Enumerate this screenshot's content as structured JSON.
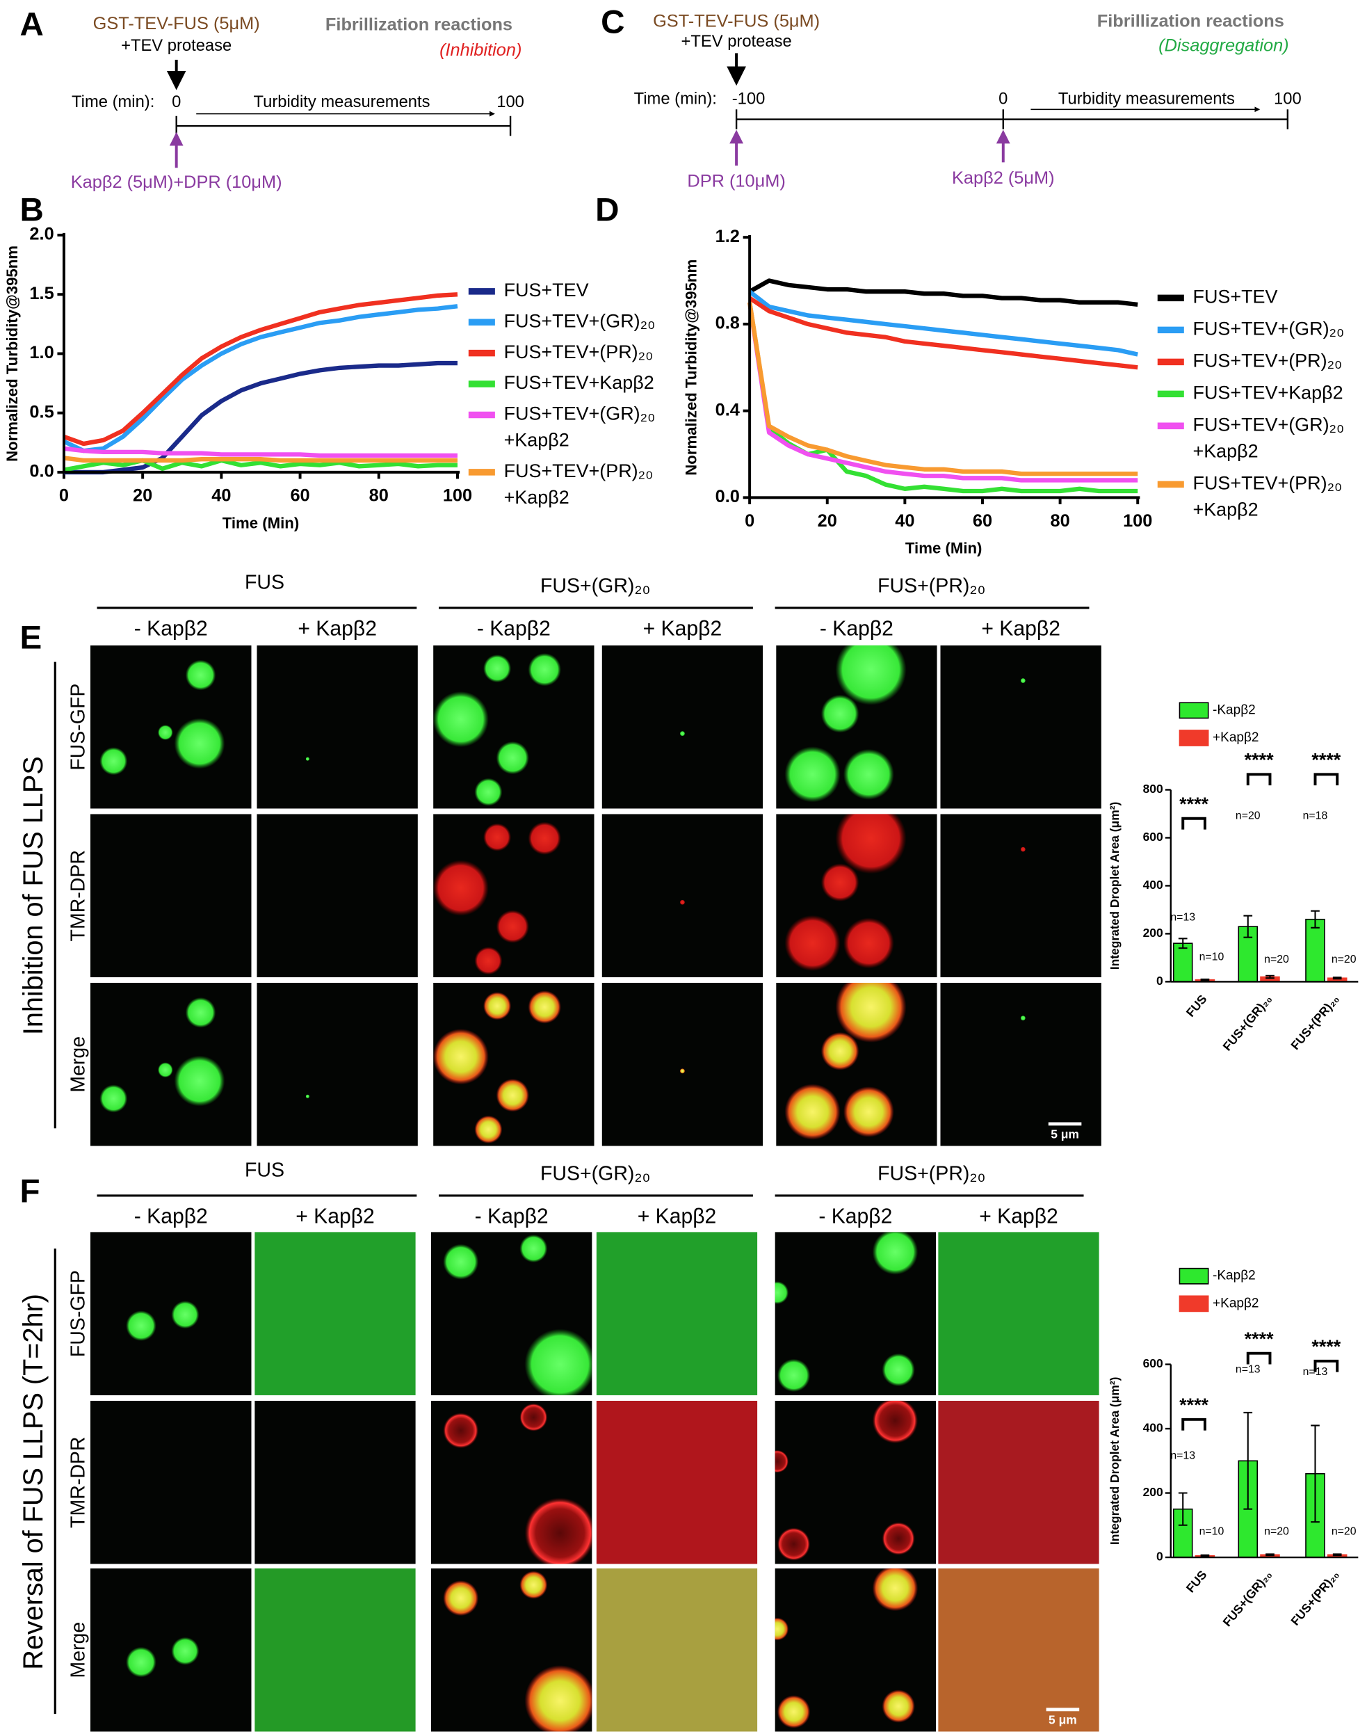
{
  "schematic_a": {
    "letter": "A",
    "protein": "GST-TEV-FUS (5μM)",
    "protease": "+TEV protease",
    "title": "Fibrillization reactions",
    "subtitle": "(Inhibition)",
    "time_label": "Time (min):",
    "start": "0",
    "measurement": "Turbidity measurements",
    "end": "100",
    "addition": "Kapβ2 (5μM)+DPR (10μM)"
  },
  "schematic_c": {
    "letter": "C",
    "protein": "GST-TEV-FUS (5μM)",
    "protease": "+TEV protease",
    "title": "Fibrillization reactions",
    "subtitle": "(Disaggregation)",
    "time_label": "Time (min):",
    "start": "-100",
    "mid": "0",
    "measurement": "Turbidity measurements",
    "end": "100",
    "addition_1": "DPR (10μM)",
    "addition_2": "Kapβ2 (5μM)"
  },
  "chart_data": [
    {
      "type": "line",
      "panel": "B",
      "x_label": "Time (Min)",
      "y_label": "Normalized Turbidity@395nm",
      "x": [
        0,
        5,
        10,
        15,
        20,
        25,
        30,
        35,
        40,
        45,
        50,
        55,
        60,
        65,
        70,
        75,
        80,
        85,
        90,
        95,
        100
      ],
      "xlim": [
        0,
        100
      ],
      "xticks": [
        0,
        20,
        40,
        60,
        80,
        100
      ],
      "ylim": [
        0,
        2
      ],
      "yticks": [
        {
          "value": 0,
          "label": "0.0"
        },
        0.5,
        {
          "value": 1,
          "label": "1.0"
        },
        1.5,
        {
          "value": 2,
          "label": "2.0"
        }
      ],
      "series": [
        {
          "name": "FUS+TEV",
          "color": "#1a2a8a",
          "values": [
            0,
            0,
            0,
            0.02,
            0.04,
            0.12,
            0.3,
            0.48,
            0.6,
            0.69,
            0.75,
            0.79,
            0.83,
            0.86,
            0.88,
            0.89,
            0.9,
            0.9,
            0.91,
            0.92,
            0.92
          ]
        },
        {
          "name": "FUS+TEV+(GR)₂₀",
          "color": "#2a9df4",
          "values": [
            0.26,
            0.18,
            0.2,
            0.3,
            0.45,
            0.62,
            0.78,
            0.9,
            1.0,
            1.08,
            1.14,
            1.18,
            1.22,
            1.26,
            1.28,
            1.31,
            1.33,
            1.35,
            1.37,
            1.38,
            1.4
          ]
        },
        {
          "name": "FUS+TEV+(PR)₂₀",
          "color": "#f03020",
          "values": [
            0.3,
            0.24,
            0.27,
            0.35,
            0.5,
            0.66,
            0.82,
            0.96,
            1.06,
            1.14,
            1.2,
            1.25,
            1.3,
            1.35,
            1.38,
            1.41,
            1.43,
            1.45,
            1.47,
            1.49,
            1.5
          ]
        },
        {
          "name": "FUS+TEV+Kapβ2",
          "color": "#33e033",
          "values": [
            0.02,
            0.05,
            0.08,
            0.06,
            0.1,
            0.03,
            0.08,
            0.05,
            0.1,
            0.06,
            0.08,
            0.05,
            0.07,
            0.06,
            0.08,
            0.05,
            0.06,
            0.07,
            0.05,
            0.06,
            0.06
          ]
        },
        {
          "name": "FUS+TEV+(GR)₂₀\n+Kapβ2",
          "color": "#f050f0",
          "values": [
            0.2,
            0.18,
            0.17,
            0.17,
            0.17,
            0.16,
            0.16,
            0.16,
            0.15,
            0.15,
            0.15,
            0.15,
            0.15,
            0.14,
            0.14,
            0.14,
            0.14,
            0.14,
            0.14,
            0.14,
            0.14
          ]
        },
        {
          "name": "FUS+TEV+(PR)₂₀\n+Kapβ2",
          "color": "#f89a30",
          "values": [
            0.12,
            0.1,
            0.1,
            0.1,
            0.1,
            0.1,
            0.1,
            0.11,
            0.11,
            0.11,
            0.11,
            0.1,
            0.1,
            0.1,
            0.1,
            0.1,
            0.1,
            0.1,
            0.1,
            0.1,
            0.1
          ]
        }
      ]
    },
    {
      "type": "line",
      "panel": "D",
      "x_label": "Time (Min)",
      "y_label": "Normalized Turbidity@395nm",
      "x": [
        0,
        5,
        10,
        15,
        20,
        25,
        30,
        35,
        40,
        45,
        50,
        55,
        60,
        65,
        70,
        75,
        80,
        85,
        90,
        95,
        100
      ],
      "xlim": [
        0,
        100
      ],
      "xticks": [
        0,
        20,
        40,
        60,
        80,
        100
      ],
      "ylim": [
        0,
        1.2
      ],
      "yticks": [
        {
          "value": 0,
          "label": "0.0"
        },
        0.4,
        0.8,
        1.2
      ],
      "series": [
        {
          "name": "FUS+TEV",
          "color": "#000000",
          "values": [
            0.95,
            1.0,
            0.98,
            0.97,
            0.96,
            0.96,
            0.95,
            0.95,
            0.95,
            0.94,
            0.94,
            0.93,
            0.93,
            0.92,
            0.92,
            0.91,
            0.91,
            0.9,
            0.9,
            0.9,
            0.89
          ]
        },
        {
          "name": "FUS+TEV+(GR)₂₀",
          "color": "#2a9df4",
          "values": [
            0.95,
            0.88,
            0.86,
            0.84,
            0.83,
            0.82,
            0.81,
            0.8,
            0.79,
            0.78,
            0.77,
            0.76,
            0.75,
            0.74,
            0.73,
            0.72,
            0.71,
            0.7,
            0.69,
            0.68,
            0.66
          ]
        },
        {
          "name": "FUS+TEV+(PR)₂₀",
          "color": "#f03020",
          "values": [
            0.92,
            0.86,
            0.83,
            0.8,
            0.78,
            0.76,
            0.75,
            0.74,
            0.72,
            0.71,
            0.7,
            0.69,
            0.68,
            0.67,
            0.66,
            0.65,
            0.64,
            0.63,
            0.62,
            0.61,
            0.6
          ]
        },
        {
          "name": "FUS+TEV+Kapβ2",
          "color": "#33e033",
          "values": [
            0.9,
            0.32,
            0.25,
            0.2,
            0.22,
            0.12,
            0.1,
            0.06,
            0.04,
            0.05,
            0.04,
            0.03,
            0.03,
            0.04,
            0.03,
            0.03,
            0.03,
            0.04,
            0.03,
            0.03,
            0.03
          ]
        },
        {
          "name": "FUS+TEV+(GR)₂₀\n+Kapβ2",
          "color": "#f050f0",
          "values": [
            0.9,
            0.3,
            0.24,
            0.2,
            0.18,
            0.16,
            0.14,
            0.12,
            0.11,
            0.1,
            0.1,
            0.09,
            0.09,
            0.09,
            0.08,
            0.08,
            0.08,
            0.08,
            0.08,
            0.08,
            0.08
          ]
        },
        {
          "name": "FUS+TEV+(PR)₂₀\n+Kapβ2",
          "color": "#f89a30",
          "values": [
            0.9,
            0.33,
            0.28,
            0.24,
            0.22,
            0.19,
            0.17,
            0.15,
            0.14,
            0.13,
            0.13,
            0.12,
            0.12,
            0.12,
            0.11,
            0.11,
            0.11,
            0.11,
            0.11,
            0.11,
            0.11
          ]
        }
      ]
    },
    {
      "type": "bar",
      "y_label": "Integrated Droplet Area (μm²)",
      "categories": [
        "FUS",
        "FUS+(GR)₂₀",
        "FUS+(PR)₂₀"
      ],
      "ylim": [
        0,
        800
      ],
      "yticks": [
        0,
        200,
        400,
        600,
        800
      ],
      "series": [
        {
          "name": "-Kapβ2",
          "color": "#2ee82e",
          "values": [
            160,
            230,
            260
          ],
          "errors": [
            20,
            45,
            35
          ],
          "n_labels": [
            "n=13",
            "n=20",
            "n=18"
          ]
        },
        {
          "name": "+Kapβ2",
          "color": "#f03a2a",
          "values": [
            8,
            20,
            15
          ],
          "errors": [
            2,
            5,
            3
          ],
          "n_labels": [
            "n=10",
            "n=20",
            "n=20"
          ]
        }
      ],
      "significance": [
        "****",
        "****",
        "****"
      ]
    },
    {
      "type": "bar",
      "y_label": "Integrated Droplet Area (μm²)",
      "categories": [
        "FUS",
        "FUS+(GR)₂₀",
        "FUS+(PR)₂₀"
      ],
      "ylim": [
        0,
        600
      ],
      "yticks": [
        0,
        200,
        400,
        600
      ],
      "series": [
        {
          "name": "-Kapβ2",
          "color": "#2ee82e",
          "values": [
            150,
            300,
            260
          ],
          "errors": [
            50,
            150,
            150
          ],
          "n_labels": [
            "n=13",
            "n=13",
            "n=13"
          ]
        },
        {
          "name": "+Kapβ2",
          "color": "#f03a2a",
          "values": [
            5,
            8,
            8
          ],
          "errors": [
            2,
            2,
            2
          ],
          "n_labels": [
            "n=10",
            "n=20",
            "n=20"
          ]
        }
      ],
      "significance": [
        "****",
        "****",
        "****"
      ]
    }
  ],
  "micrographs_e": {
    "letter": "E",
    "groups": [
      "FUS",
      "FUS+(GR)₂₀",
      "FUS+(PR)₂₀"
    ],
    "conditions": [
      "- Kapβ2",
      "+ Kapβ2",
      "- Kapβ2",
      "+ Kapβ2",
      "- Kapβ2",
      "+ Kapβ2"
    ],
    "channels": [
      "FUS-GFP",
      "TMR-DPR",
      "Merge"
    ],
    "side_label": "Inhibition of FUS LLPS",
    "scale_bar": "5 μm"
  },
  "micrographs_f": {
    "letter": "F",
    "groups": [
      "FUS",
      "FUS+(GR)₂₀",
      "FUS+(PR)₂₀"
    ],
    "conditions": [
      "- Kapβ2",
      "+ Kapβ2",
      "- Kapβ2",
      "+ Kapβ2",
      "- Kapβ2",
      "+ Kapβ2"
    ],
    "channels": [
      "FUS-GFP",
      "TMR-DPR",
      "Merge"
    ],
    "side_label": "Reversal of FUS LLPS (T=2hr)",
    "scale_bar": "5 μm"
  }
}
